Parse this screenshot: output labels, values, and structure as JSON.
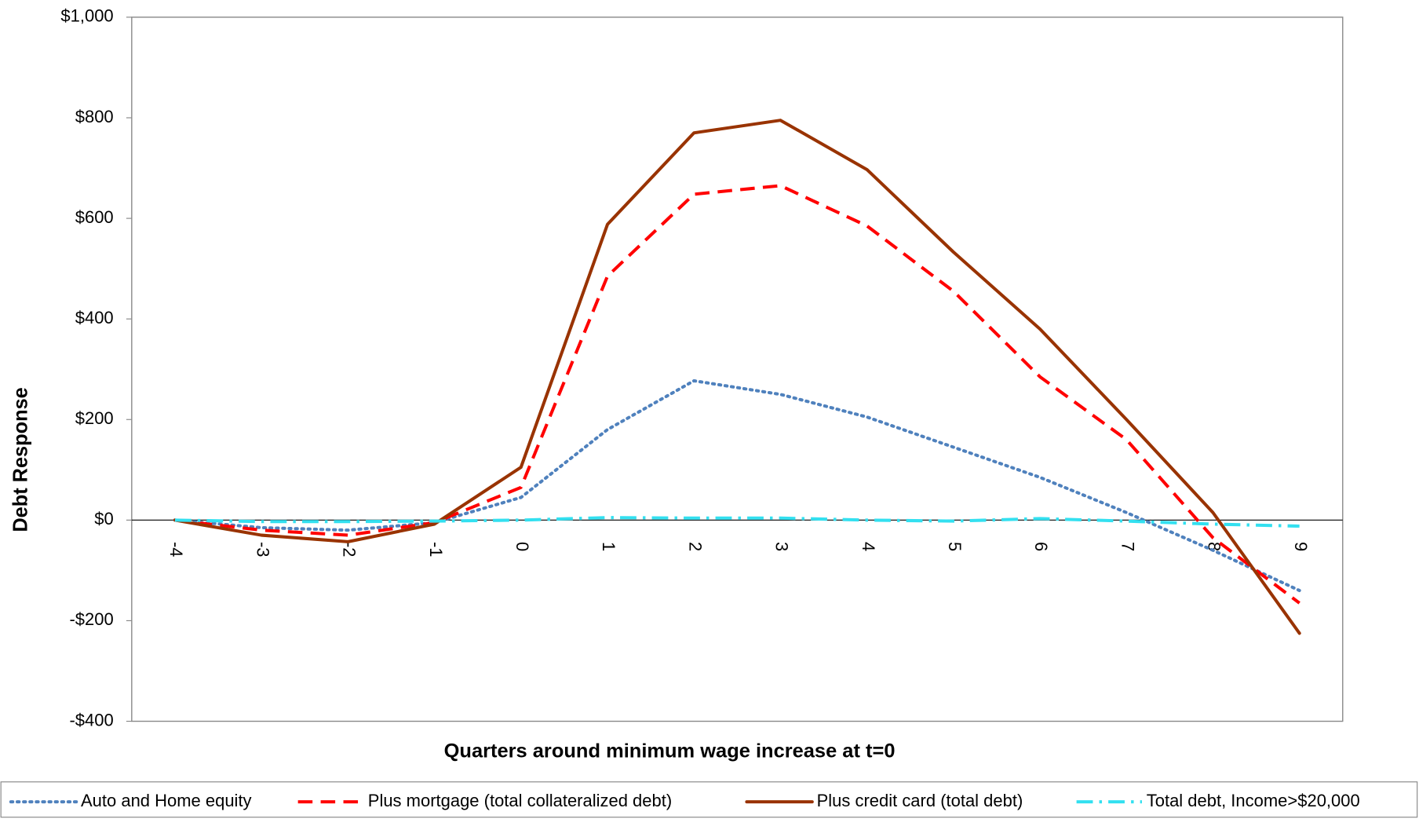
{
  "chart_data": {
    "type": "line",
    "x_label": "Quarters around minimum wage increase at t=0",
    "y_label": "Debt Response",
    "categories": [
      "-4",
      "-3",
      "-2",
      "-1",
      "0",
      "1",
      "2",
      "3",
      "4",
      "5",
      "6",
      "7",
      "8",
      "9"
    ],
    "series": [
      {
        "name": "Auto and Home equity",
        "color": "#4f81bd",
        "dash": "dotted",
        "values": [
          0,
          -15,
          -20,
          -5,
          45,
          180,
          277,
          250,
          205,
          145,
          85,
          15,
          -60,
          -140
        ]
      },
      {
        "name": "Plus mortgage (total collateralized debt)",
        "color": "#ff0000",
        "dash": "dashed",
        "values": [
          0,
          -20,
          -30,
          -5,
          65,
          485,
          648,
          665,
          585,
          455,
          285,
          160,
          -35,
          -165
        ]
      },
      {
        "name": "Plus credit card (total debt)",
        "color": "#993300",
        "dash": "solid",
        "values": [
          0,
          -30,
          -43,
          -8,
          105,
          588,
          770,
          795,
          697,
          533,
          380,
          200,
          15,
          -225
        ]
      },
      {
        "name": "Total debt, Income>$20,000",
        "color": "#33e0f0",
        "dash": "dashdot",
        "values": [
          0,
          -3,
          -3,
          -2,
          0,
          5,
          4,
          4,
          0,
          -2,
          3,
          -2,
          -8,
          -12
        ]
      }
    ],
    "ylim": [
      -400,
      1000
    ],
    "yticks": [
      {
        "value": -400,
        "label": "-$400"
      },
      {
        "value": -200,
        "label": "-$200"
      },
      {
        "value": 0,
        "label": "$0"
      },
      {
        "value": 200,
        "label": "$200"
      },
      {
        "value": 400,
        "label": "$400"
      },
      {
        "value": 600,
        "label": "$600"
      },
      {
        "value": 800,
        "label": "$800"
      },
      {
        "value": 1000,
        "label": "$1,000"
      }
    ],
    "grid": false,
    "legend": "bottom"
  }
}
